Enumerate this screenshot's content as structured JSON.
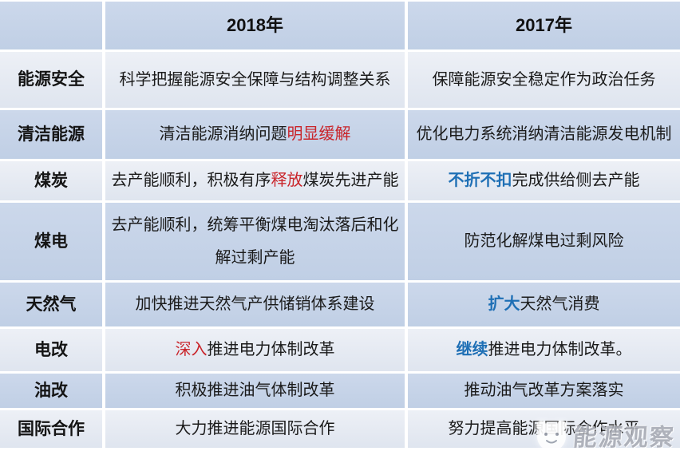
{
  "page": {
    "description": "2018年与2017年能源政策对比表"
  },
  "colors": {
    "row_blue": "#c5d3e8",
    "row_light": "#e5eaf2",
    "separator": "#ffffff",
    "text_black": "#1b1b1b",
    "text_red": "#c9252b",
    "text_blue": "#1e6fb5"
  },
  "table": {
    "columns": [
      "",
      "2018年",
      "2017年"
    ],
    "rows": [
      {
        "label": "能源安全",
        "tone": "light",
        "y2018": [
          {
            "t": "科学把握能源安全保障与结构调整关系",
            "s": "black"
          }
        ],
        "y2017": [
          {
            "t": "保障能源安全稳定作为政治任务",
            "s": "black"
          }
        ]
      },
      {
        "label": "清洁能源",
        "tone": "blue",
        "y2018": [
          {
            "t": "清洁能源消纳问题",
            "s": "black"
          },
          {
            "t": "明显缓解",
            "s": "red"
          }
        ],
        "y2017": [
          {
            "t": "优化电力系统消纳清洁能源发电机制",
            "s": "black"
          }
        ]
      },
      {
        "label": "煤炭",
        "tone": "light",
        "y2018": [
          {
            "t": "去产能顺利，积极有序",
            "s": "black"
          },
          {
            "t": "释放",
            "s": "red"
          },
          {
            "t": "煤炭先进产能",
            "s": "black"
          }
        ],
        "y2017": [
          {
            "t": "不折不扣",
            "s": "blue"
          },
          {
            "t": "完成供给侧去产能",
            "s": "black"
          }
        ]
      },
      {
        "label": "煤电",
        "tone": "blue",
        "y2018": [
          {
            "t": "去产能顺利，统筹平衡煤电淘汰落后和化解过剩产能",
            "s": "black"
          }
        ],
        "y2017": [
          {
            "t": "防范化解煤电过剩风险",
            "s": "black"
          }
        ]
      },
      {
        "label": "天然气",
        "tone": "blue",
        "y2018": [
          {
            "t": "加快推进天然气产供储销体系建设",
            "s": "black"
          }
        ],
        "y2017": [
          {
            "t": "扩大",
            "s": "blue"
          },
          {
            "t": "天然气消费",
            "s": "black"
          }
        ]
      },
      {
        "label": "电改",
        "tone": "light",
        "y2018": [
          {
            "t": "深入",
            "s": "red"
          },
          {
            "t": "推进电力体制改革",
            "s": "black"
          }
        ],
        "y2017": [
          {
            "t": "继续",
            "s": "blue"
          },
          {
            "t": "推进电力体制改革。",
            "s": "black"
          }
        ]
      },
      {
        "label": "油改",
        "tone": "blue",
        "y2018": [
          {
            "t": "积极推进油气体制改革",
            "s": "black"
          }
        ],
        "y2017": [
          {
            "t": "推动油气改革方案落实",
            "s": "black"
          }
        ]
      },
      {
        "label": "国际合作",
        "tone": "light",
        "y2018": [
          {
            "t": "大力推进能源国际合作",
            "s": "black"
          }
        ],
        "y2017": [
          {
            "t": "努力提高能源国际合作水平",
            "s": "black"
          }
        ]
      }
    ]
  },
  "watermark": {
    "text": "能源观察",
    "logo": "mascot-face-logo"
  }
}
